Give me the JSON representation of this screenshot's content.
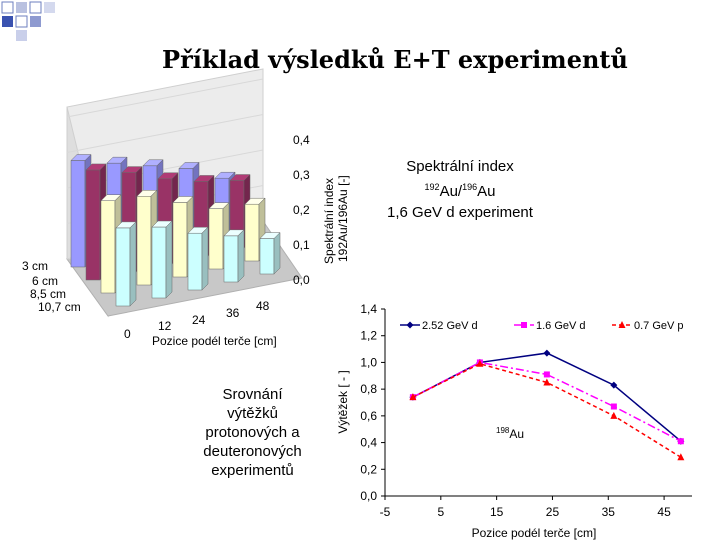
{
  "slide": {
    "title": "Příklad výsledků E+T experimentů",
    "accent_color": "#3a52b0"
  },
  "spectral_text": {
    "line1": "Spektrální index",
    "sup1": "192",
    "mid": "Au/",
    "sup2": "196",
    "tail": "Au",
    "line3": "1,6 GeV d experiment"
  },
  "comparison_text": {
    "lines": [
      "Srovnání",
      "výtěžků",
      "protonových a",
      "deuteronových",
      "experimentů"
    ]
  },
  "chart_data": [
    {
      "type": "bar",
      "variant": "3d-bar",
      "title": "",
      "zlabel": "Spektrální index",
      "zlabel_sub": "192Au/196Au [-]",
      "xlabel": "Pozice podél terče [cm]",
      "x_categories": [
        "0",
        "12",
        "24",
        "36",
        "48"
      ],
      "y_categories": [
        "3 cm",
        "6 cm",
        "8,5 cm",
        "10,7 cm"
      ],
      "zlim": [
        0,
        0.4
      ],
      "z_ticks": [
        "0,0",
        "0,1",
        "0,2",
        "0,3",
        "0,4"
      ],
      "series": [
        {
          "name": "3 cm",
          "color": "#9999ff",
          "values": [
            0.3,
            0.27,
            0.24,
            0.21,
            0.16
          ]
        },
        {
          "name": "6 cm",
          "color": "#993366",
          "values": [
            0.31,
            0.28,
            0.24,
            0.21,
            0.19
          ]
        },
        {
          "name": "8,5 cm",
          "color": "#ffffcc",
          "values": [
            0.26,
            0.25,
            0.21,
            0.17,
            0.16
          ]
        },
        {
          "name": "10,7 cm",
          "color": "#ccffff",
          "values": [
            0.22,
            0.2,
            0.16,
            0.13,
            0.1
          ]
        }
      ]
    },
    {
      "type": "line",
      "title": "",
      "xlabel": "Pozice podél terče [cm]",
      "ylabel": "Výtěžek [ - ]",
      "annotation": "198Au",
      "annotation_main": "Au",
      "annotation_sup": "198",
      "xlim": [
        -5,
        50
      ],
      "ylim": [
        0,
        1.4
      ],
      "x_ticks": [
        "-5",
        "5",
        "15",
        "25",
        "35",
        "45"
      ],
      "y_ticks": [
        "0,0",
        "0,2",
        "0,4",
        "0,6",
        "0,8",
        "1,0",
        "1,2",
        "1,4"
      ],
      "series": [
        {
          "name": "2.52 GeV d",
          "color": "#000080",
          "marker": "diamond",
          "dash": "solid",
          "x": [
            0,
            12,
            24,
            36,
            48
          ],
          "y": [
            0.74,
            1.0,
            1.07,
            0.83,
            0.41
          ]
        },
        {
          "name": "1.6 GeV d",
          "color": "#ff00ff",
          "marker": "square",
          "dash": "dashdot",
          "x": [
            0,
            12,
            24,
            36,
            48
          ],
          "y": [
            0.74,
            1.0,
            0.91,
            0.67,
            0.41
          ]
        },
        {
          "name": "0.7 GeV p",
          "color": "#ff0000",
          "marker": "triangle",
          "dash": "dash",
          "x": [
            0,
            12,
            24,
            36,
            48
          ],
          "y": [
            0.74,
            0.99,
            0.85,
            0.6,
            0.29
          ]
        }
      ]
    }
  ]
}
